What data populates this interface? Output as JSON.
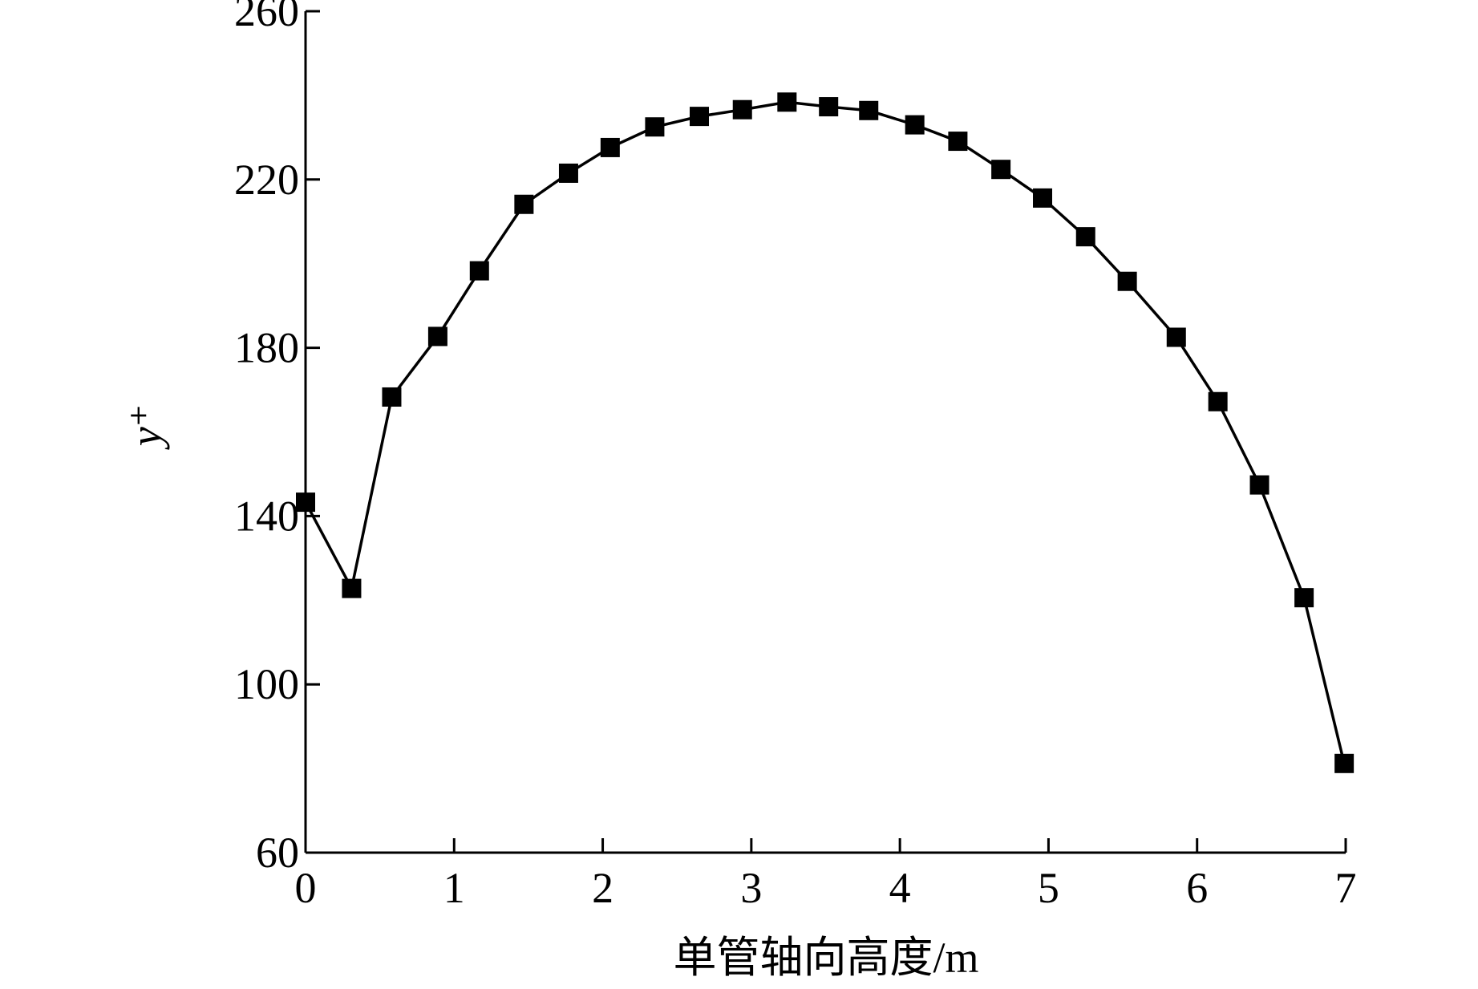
{
  "chart_data": {
    "type": "line",
    "xlabel": "单管轴向高度/m",
    "ylabel": "y⁺",
    "x": [
      0,
      0.31,
      0.58,
      0.89,
      1.17,
      1.47,
      1.77,
      2.05,
      2.35,
      2.65,
      2.94,
      3.24,
      3.52,
      3.79,
      4.1,
      4.39,
      4.68,
      4.96,
      5.25,
      5.53,
      5.86,
      6.14,
      6.42,
      6.72,
      6.99
    ],
    "series": [
      {
        "color": "#000000",
        "values": [
          143.3,
          122.8,
          168.3,
          182.7,
          198.3,
          214.1,
          221.5,
          227.6,
          232.5,
          235.0,
          236.6,
          238.4,
          237.3,
          236.4,
          233.0,
          229.1,
          222.4,
          215.6,
          206.4,
          195.8,
          182.5,
          167.2,
          147.4,
          120.6,
          81.2
        ]
      }
    ],
    "xlim": [
      0,
      7
    ],
    "xticks": [
      0,
      1,
      2,
      3,
      4,
      5,
      6,
      7
    ],
    "ylim": [
      60,
      260
    ],
    "yticks": [
      60,
      100,
      140,
      180,
      220,
      260
    ]
  }
}
